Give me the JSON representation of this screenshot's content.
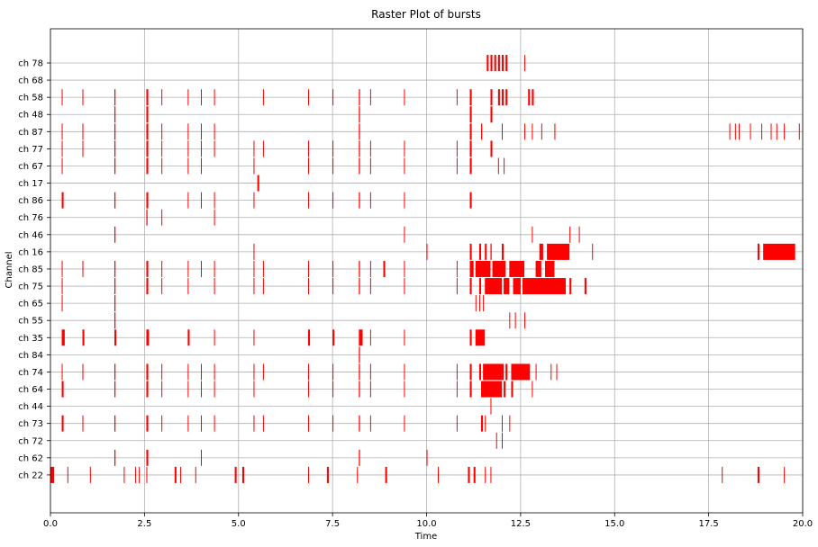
{
  "chart_data": {
    "type": "raster",
    "title": "Raster Plot of bursts",
    "xlabel": "Time",
    "ylabel": "Channel",
    "xlim": [
      0.0,
      20.0
    ],
    "xticks": [
      "0.0",
      "2.5",
      "5.0",
      "7.5",
      "10.0",
      "12.5",
      "15.0",
      "17.5",
      "20.0"
    ],
    "grid": true,
    "color": "#ff0000",
    "channels": [
      "ch 78",
      "ch 68",
      "ch 58",
      "ch 48",
      "ch 87",
      "ch 77",
      "ch 67",
      "ch 17",
      "ch 86",
      "ch 76",
      "ch 46",
      "ch 16",
      "ch 85",
      "ch 75",
      "ch 65",
      "ch 55",
      "ch 35",
      "ch 84",
      "ch 74",
      "ch 64",
      "ch 44",
      "ch 73",
      "ch 72",
      "ch 62",
      "ch 22"
    ],
    "events": {
      "ch 78": [
        [
          11.6,
          11.65
        ],
        [
          11.7,
          11.75
        ],
        [
          11.8,
          11.85
        ],
        [
          11.9,
          11.95
        ],
        [
          12.0,
          12.05
        ],
        [
          12.1,
          12.15
        ],
        [
          12.6,
          12.62
        ]
      ],
      "ch 68": [],
      "ch 58": [
        [
          0.3,
          0.32
        ],
        [
          0.85,
          0.87
        ],
        [
          1.7,
          1.73
        ],
        [
          2.55,
          2.6
        ],
        [
          2.95,
          2.97
        ],
        [
          3.65,
          3.67
        ],
        [
          4.0,
          4.02
        ],
        [
          4.35,
          4.37
        ],
        [
          5.65,
          5.67
        ],
        [
          6.85,
          6.87
        ],
        [
          7.5,
          7.52
        ],
        [
          8.2,
          8.23
        ],
        [
          8.5,
          8.52
        ],
        [
          9.4,
          9.42
        ],
        [
          10.8,
          10.82
        ],
        [
          11.15,
          11.2
        ],
        [
          11.7,
          11.75
        ],
        [
          11.9,
          11.95
        ],
        [
          12.0,
          12.05
        ],
        [
          12.1,
          12.15
        ],
        [
          12.7,
          12.75
        ],
        [
          12.8,
          12.85
        ]
      ],
      "ch 48": [
        [
          1.7,
          1.73
        ],
        [
          2.55,
          2.6
        ],
        [
          8.2,
          8.23
        ],
        [
          11.15,
          11.2
        ],
        [
          11.7,
          11.75
        ]
      ],
      "ch 87": [
        [
          0.3,
          0.32
        ],
        [
          0.85,
          0.87
        ],
        [
          1.7,
          1.73
        ],
        [
          2.55,
          2.6
        ],
        [
          2.95,
          2.97
        ],
        [
          3.65,
          3.67
        ],
        [
          4.0,
          4.02
        ],
        [
          4.35,
          4.37
        ],
        [
          8.2,
          8.23
        ],
        [
          11.15,
          11.2
        ],
        [
          11.45,
          11.48
        ],
        [
          12.0,
          12.02
        ],
        [
          12.6,
          12.62
        ],
        [
          12.8,
          12.82
        ],
        [
          13.05,
          13.07
        ],
        [
          13.4,
          13.42
        ],
        [
          18.05,
          18.07
        ],
        [
          18.2,
          18.22
        ],
        [
          18.3,
          18.32
        ],
        [
          18.6,
          18.62
        ],
        [
          18.9,
          18.92
        ],
        [
          19.15,
          19.17
        ],
        [
          19.3,
          19.32
        ],
        [
          19.5,
          19.52
        ],
        [
          19.9,
          19.92
        ]
      ],
      "ch 77": [
        [
          0.3,
          0.32
        ],
        [
          0.85,
          0.87
        ],
        [
          1.7,
          1.73
        ],
        [
          2.55,
          2.6
        ],
        [
          2.95,
          2.97
        ],
        [
          3.65,
          3.67
        ],
        [
          4.0,
          4.02
        ],
        [
          4.35,
          4.37
        ],
        [
          5.4,
          5.42
        ],
        [
          5.65,
          5.67
        ],
        [
          6.85,
          6.87
        ],
        [
          7.5,
          7.52
        ],
        [
          8.2,
          8.23
        ],
        [
          8.5,
          8.52
        ],
        [
          9.4,
          9.42
        ],
        [
          10.8,
          10.82
        ],
        [
          11.15,
          11.2
        ],
        [
          11.7,
          11.75
        ]
      ],
      "ch 67": [
        [
          0.3,
          0.32
        ],
        [
          1.7,
          1.73
        ],
        [
          2.55,
          2.6
        ],
        [
          2.95,
          2.97
        ],
        [
          3.65,
          3.67
        ],
        [
          4.0,
          4.02
        ],
        [
          5.4,
          5.42
        ],
        [
          6.85,
          6.87
        ],
        [
          7.5,
          7.52
        ],
        [
          8.2,
          8.23
        ],
        [
          8.5,
          8.52
        ],
        [
          9.4,
          9.42
        ],
        [
          10.8,
          10.82
        ],
        [
          11.15,
          11.2
        ],
        [
          11.9,
          11.92
        ],
        [
          12.05,
          12.07
        ]
      ],
      "ch 17": [
        [
          5.5,
          5.55
        ]
      ],
      "ch 86": [
        [
          0.3,
          0.35
        ],
        [
          1.7,
          1.73
        ],
        [
          2.55,
          2.6
        ],
        [
          3.65,
          3.67
        ],
        [
          4.0,
          4.02
        ],
        [
          4.35,
          4.37
        ],
        [
          5.4,
          5.42
        ],
        [
          6.85,
          6.87
        ],
        [
          7.5,
          7.52
        ],
        [
          8.2,
          8.23
        ],
        [
          8.5,
          8.52
        ],
        [
          9.4,
          9.42
        ],
        [
          11.15,
          11.2
        ]
      ],
      "ch 76": [
        [
          2.55,
          2.58
        ],
        [
          2.95,
          2.97
        ],
        [
          4.35,
          4.37
        ]
      ],
      "ch 46": [
        [
          1.7,
          1.73
        ],
        [
          9.4,
          9.42
        ],
        [
          12.8,
          12.82
        ],
        [
          13.8,
          13.82
        ],
        [
          14.05,
          14.07
        ]
      ],
      "ch 16": [
        [
          5.4,
          5.42
        ],
        [
          10.0,
          10.02
        ],
        [
          11.15,
          11.2
        ],
        [
          11.4,
          11.45
        ],
        [
          11.55,
          11.6
        ],
        [
          11.7,
          11.73
        ],
        [
          12.0,
          12.05
        ],
        [
          13.0,
          13.1
        ],
        [
          13.2,
          13.8
        ],
        [
          14.4,
          14.42
        ],
        [
          18.8,
          18.85
        ],
        [
          18.95,
          19.8
        ]
      ],
      "ch 85": [
        [
          0.3,
          0.32
        ],
        [
          0.85,
          0.87
        ],
        [
          1.7,
          1.73
        ],
        [
          2.55,
          2.6
        ],
        [
          2.95,
          2.97
        ],
        [
          3.65,
          3.67
        ],
        [
          4.0,
          4.02
        ],
        [
          4.35,
          4.37
        ],
        [
          5.4,
          5.42
        ],
        [
          5.65,
          5.67
        ],
        [
          6.85,
          6.87
        ],
        [
          7.5,
          7.52
        ],
        [
          8.2,
          8.23
        ],
        [
          8.5,
          8.52
        ],
        [
          8.85,
          8.9
        ],
        [
          9.4,
          9.42
        ],
        [
          10.8,
          10.82
        ],
        [
          11.15,
          11.25
        ],
        [
          11.3,
          11.7
        ],
        [
          11.75,
          12.1
        ],
        [
          12.2,
          12.6
        ],
        [
          12.9,
          13.05
        ],
        [
          13.15,
          13.4
        ]
      ],
      "ch 75": [
        [
          0.3,
          0.32
        ],
        [
          1.7,
          1.73
        ],
        [
          2.55,
          2.6
        ],
        [
          2.95,
          2.97
        ],
        [
          3.65,
          3.67
        ],
        [
          4.35,
          4.37
        ],
        [
          5.4,
          5.42
        ],
        [
          5.65,
          5.67
        ],
        [
          6.85,
          6.87
        ],
        [
          7.5,
          7.52
        ],
        [
          8.2,
          8.23
        ],
        [
          8.5,
          8.52
        ],
        [
          9.4,
          9.42
        ],
        [
          10.8,
          10.82
        ],
        [
          11.15,
          11.2
        ],
        [
          11.4,
          11.45
        ],
        [
          11.55,
          12.0
        ],
        [
          12.05,
          12.2
        ],
        [
          12.3,
          12.5
        ],
        [
          12.55,
          13.7
        ],
        [
          13.8,
          13.85
        ],
        [
          14.2,
          14.25
        ]
      ],
      "ch 65": [
        [
          0.3,
          0.32
        ],
        [
          1.7,
          1.73
        ],
        [
          11.3,
          11.32
        ],
        [
          11.4,
          11.42
        ],
        [
          11.5,
          11.52
        ]
      ],
      "ch 55": [
        [
          1.7,
          1.73
        ],
        [
          12.2,
          12.22
        ],
        [
          12.35,
          12.37
        ],
        [
          12.6,
          12.62
        ]
      ],
      "ch 35": [
        [
          0.3,
          0.38
        ],
        [
          0.85,
          0.9
        ],
        [
          1.7,
          1.75
        ],
        [
          2.55,
          2.62
        ],
        [
          3.65,
          3.7
        ],
        [
          4.35,
          4.37
        ],
        [
          5.4,
          5.42
        ],
        [
          6.85,
          6.9
        ],
        [
          7.5,
          7.55
        ],
        [
          8.2,
          8.3
        ],
        [
          8.5,
          8.52
        ],
        [
          9.4,
          9.42
        ],
        [
          11.15,
          11.2
        ],
        [
          11.3,
          11.55
        ]
      ],
      "ch 84": [
        [
          8.2,
          8.23
        ]
      ],
      "ch 74": [
        [
          0.3,
          0.32
        ],
        [
          0.85,
          0.87
        ],
        [
          1.7,
          1.73
        ],
        [
          2.55,
          2.6
        ],
        [
          2.95,
          2.97
        ],
        [
          3.65,
          3.67
        ],
        [
          4.0,
          4.02
        ],
        [
          4.35,
          4.37
        ],
        [
          5.4,
          5.42
        ],
        [
          5.65,
          5.67
        ],
        [
          6.85,
          6.87
        ],
        [
          7.5,
          7.52
        ],
        [
          8.2,
          8.23
        ],
        [
          8.5,
          8.52
        ],
        [
          9.4,
          9.42
        ],
        [
          10.8,
          10.82
        ],
        [
          11.15,
          11.2
        ],
        [
          11.4,
          11.45
        ],
        [
          11.5,
          12.05
        ],
        [
          12.1,
          12.15
        ],
        [
          12.25,
          12.75
        ],
        [
          12.9,
          12.92
        ],
        [
          13.3,
          13.32
        ],
        [
          13.45,
          13.47
        ]
      ],
      "ch 64": [
        [
          0.3,
          0.35
        ],
        [
          1.7,
          1.73
        ],
        [
          2.55,
          2.6
        ],
        [
          2.95,
          2.97
        ],
        [
          3.65,
          3.67
        ],
        [
          4.0,
          4.02
        ],
        [
          4.35,
          4.37
        ],
        [
          5.4,
          5.42
        ],
        [
          6.85,
          6.87
        ],
        [
          7.5,
          7.52
        ],
        [
          8.2,
          8.23
        ],
        [
          8.5,
          8.52
        ],
        [
          9.4,
          9.42
        ],
        [
          10.8,
          10.82
        ],
        [
          11.15,
          11.2
        ],
        [
          11.45,
          12.0
        ],
        [
          12.05,
          12.1
        ],
        [
          12.25,
          12.3
        ],
        [
          12.8,
          12.82
        ]
      ],
      "ch 44": [
        [
          11.7,
          11.72
        ]
      ],
      "ch 73": [
        [
          0.3,
          0.35
        ],
        [
          0.85,
          0.87
        ],
        [
          1.7,
          1.73
        ],
        [
          2.55,
          2.6
        ],
        [
          2.95,
          2.97
        ],
        [
          3.65,
          3.67
        ],
        [
          4.0,
          4.02
        ],
        [
          4.35,
          4.37
        ],
        [
          5.4,
          5.42
        ],
        [
          5.65,
          5.67
        ],
        [
          6.85,
          6.87
        ],
        [
          7.5,
          7.52
        ],
        [
          8.2,
          8.23
        ],
        [
          8.5,
          8.52
        ],
        [
          9.4,
          9.42
        ],
        [
          10.8,
          10.82
        ],
        [
          11.45,
          11.5
        ],
        [
          11.55,
          11.57
        ],
        [
          12.0,
          12.02
        ],
        [
          12.2,
          12.22
        ]
      ],
      "ch 72": [
        [
          11.85,
          11.87
        ],
        [
          12.0,
          12.02
        ]
      ],
      "ch 62": [
        [
          1.7,
          1.73
        ],
        [
          2.55,
          2.6
        ],
        [
          4.0,
          4.02
        ],
        [
          8.2,
          8.23
        ],
        [
          10.0,
          10.02
        ]
      ],
      "ch 22": [
        [
          0.0,
          0.1
        ],
        [
          0.45,
          0.47
        ],
        [
          1.05,
          1.07
        ],
        [
          1.95,
          1.97
        ],
        [
          2.25,
          2.27
        ],
        [
          2.35,
          2.37
        ],
        [
          2.55,
          2.57
        ],
        [
          3.3,
          3.35
        ],
        [
          3.45,
          3.47
        ],
        [
          3.85,
          3.87
        ],
        [
          4.9,
          4.95
        ],
        [
          5.1,
          5.15
        ],
        [
          6.85,
          6.87
        ],
        [
          7.35,
          7.4
        ],
        [
          8.15,
          8.17
        ],
        [
          8.9,
          8.95
        ],
        [
          10.3,
          10.32
        ],
        [
          11.1,
          11.15
        ],
        [
          11.25,
          11.3
        ],
        [
          11.55,
          11.57
        ],
        [
          11.7,
          11.72
        ],
        [
          17.85,
          17.87
        ],
        [
          18.8,
          18.85
        ],
        [
          19.5,
          19.52
        ]
      ]
    }
  }
}
